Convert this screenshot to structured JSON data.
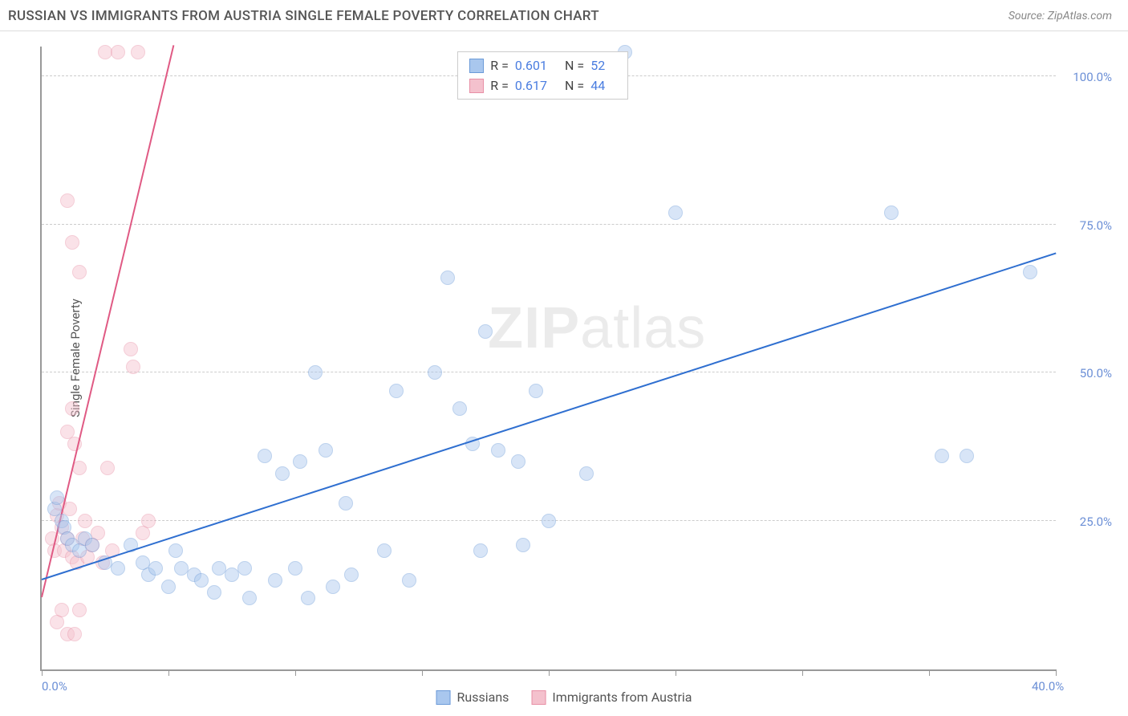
{
  "header": {
    "title": "RUSSIAN VS IMMIGRANTS FROM AUSTRIA SINGLE FEMALE POVERTY CORRELATION CHART",
    "source": "Source: ZipAtlas.com"
  },
  "ylabel": "Single Female Poverty",
  "watermark": {
    "part1": "ZIP",
    "part2": "atlas"
  },
  "chart": {
    "type": "scatter",
    "xlim": [
      0,
      40
    ],
    "ylim": [
      0,
      105
    ],
    "background": "#ffffff",
    "grid_color": "#cccccc",
    "axis_color": "#999999",
    "ytick_label_color": "#6b8fd6",
    "xtick_label_color": "#6b8fd6",
    "yticks": [
      25,
      50,
      75,
      100
    ],
    "ytick_labels": [
      "25.0%",
      "50.0%",
      "75.0%",
      "100.0%"
    ],
    "xticks": [
      0,
      5,
      10,
      15,
      20,
      25,
      30,
      35,
      40
    ],
    "xtick_labels_shown": {
      "0": "0.0%",
      "40": "40.0%"
    },
    "marker_radius": 9,
    "marker_opacity": 0.45
  },
  "series": {
    "blue": {
      "label": "Russians",
      "fill": "#a9c7ee",
      "stroke": "#6b9ad8",
      "trend_color": "#2f6fd0",
      "trend": {
        "x1": 0,
        "y1": 15,
        "x2": 40,
        "y2": 70
      },
      "R": "0.601",
      "N": "52",
      "points": [
        [
          0.5,
          27
        ],
        [
          0.8,
          25
        ],
        [
          0.6,
          29
        ],
        [
          0.9,
          24
        ],
        [
          1.0,
          22
        ],
        [
          1.2,
          21
        ],
        [
          1.5,
          20
        ],
        [
          1.7,
          22
        ],
        [
          2.0,
          21
        ],
        [
          2.5,
          18
        ],
        [
          3.0,
          17
        ],
        [
          3.5,
          21
        ],
        [
          4.0,
          18
        ],
        [
          4.2,
          16
        ],
        [
          4.5,
          17
        ],
        [
          5.0,
          14
        ],
        [
          5.3,
          20
        ],
        [
          5.5,
          17
        ],
        [
          6.0,
          16
        ],
        [
          6.3,
          15
        ],
        [
          6.8,
          13
        ],
        [
          7.0,
          17
        ],
        [
          7.5,
          16
        ],
        [
          8.0,
          17
        ],
        [
          8.2,
          12
        ],
        [
          8.8,
          36
        ],
        [
          9.2,
          15
        ],
        [
          9.5,
          33
        ],
        [
          10.0,
          17
        ],
        [
          10.2,
          35
        ],
        [
          10.5,
          12
        ],
        [
          10.8,
          50
        ],
        [
          11.2,
          37
        ],
        [
          11.5,
          14
        ],
        [
          12.0,
          28
        ],
        [
          12.2,
          16
        ],
        [
          13.5,
          20
        ],
        [
          14.0,
          47
        ],
        [
          14.5,
          15
        ],
        [
          15.5,
          50
        ],
        [
          16.0,
          66
        ],
        [
          16.5,
          44
        ],
        [
          17.0,
          38
        ],
        [
          17.3,
          20
        ],
        [
          17.5,
          57
        ],
        [
          18.0,
          37
        ],
        [
          19.0,
          21
        ],
        [
          18.8,
          35
        ],
        [
          19.5,
          47
        ],
        [
          20.0,
          25
        ],
        [
          21.5,
          33
        ],
        [
          23.0,
          104
        ],
        [
          25.0,
          77
        ],
        [
          33.5,
          77
        ],
        [
          35.5,
          36
        ],
        [
          36.5,
          36
        ],
        [
          39.0,
          67
        ]
      ]
    },
    "pink": {
      "label": "Immigrants from Austria",
      "fill": "#f4c1cd",
      "stroke": "#e890a6",
      "trend_color": "#e05a84",
      "trend": {
        "x1": 0,
        "y1": 12,
        "x2": 5.2,
        "y2": 105
      },
      "R": "0.617",
      "N": "44",
      "points": [
        [
          0.4,
          22
        ],
        [
          0.5,
          20
        ],
        [
          0.6,
          26
        ],
        [
          0.7,
          28
        ],
        [
          0.8,
          24
        ],
        [
          0.9,
          20
        ],
        [
          1.0,
          22
        ],
        [
          1.1,
          27
        ],
        [
          1.2,
          19
        ],
        [
          0.6,
          8
        ],
        [
          0.8,
          10
        ],
        [
          1.0,
          6
        ],
        [
          1.3,
          6
        ],
        [
          1.4,
          18
        ],
        [
          1.5,
          10
        ],
        [
          1.0,
          40
        ],
        [
          1.2,
          44
        ],
        [
          1.3,
          38
        ],
        [
          1.5,
          34
        ],
        [
          1.6,
          22
        ],
        [
          1.7,
          25
        ],
        [
          1.8,
          19
        ],
        [
          1.5,
          67
        ],
        [
          1.2,
          72
        ],
        [
          1.0,
          79
        ],
        [
          2.0,
          21
        ],
        [
          2.2,
          23
        ],
        [
          2.4,
          18
        ],
        [
          2.5,
          104
        ],
        [
          2.6,
          34
        ],
        [
          2.8,
          20
        ],
        [
          3.5,
          54
        ],
        [
          3.6,
          51
        ],
        [
          4.0,
          23
        ],
        [
          4.2,
          25
        ],
        [
          3.0,
          104
        ],
        [
          3.8,
          104
        ]
      ]
    }
  },
  "legend_top": {
    "r_label": "R =",
    "n_label": "N ="
  },
  "legend_bottom": {
    "items": [
      "blue",
      "pink"
    ]
  }
}
